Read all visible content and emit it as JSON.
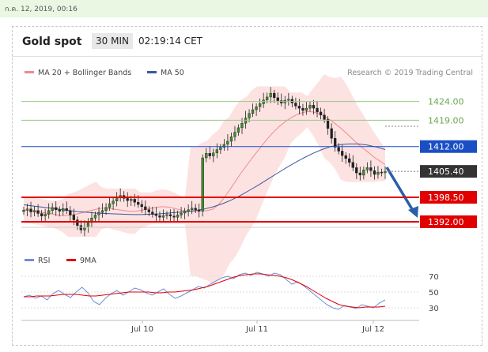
{
  "topbar": {
    "date_text": "ก.ค. 12, 2019, 00:16"
  },
  "header": {
    "title": "Gold spot",
    "timeframe": "30 MIN",
    "clock": "02:19:14 CET"
  },
  "legend": {
    "ma20_label": "MA 20 + Bollinger Bands",
    "ma50_label": "MA 50",
    "credit": "Research © 2019 Trading Central",
    "rsi_label": "RSI",
    "ma9_label": "9MA"
  },
  "colors": {
    "ma20": "#f08a8a",
    "ma50": "#3a5a9c",
    "bands": "#fde2e2",
    "resistance_green": "#9bc98a",
    "support_red": "#e00000",
    "blue_level": "#1a4fc4",
    "price_tag": "#333333",
    "arrow": "#2a5fa8",
    "rsi": "#6f8fd6",
    "rsi_ma": "#e00000"
  },
  "chart_data": [
    {
      "type": "line",
      "title": "Gold spot",
      "subtitle": "30 MIN",
      "ylim": [
        1388,
        1430
      ],
      "x_ticks": [
        "Jul 10",
        "Jul 11",
        "Jul 12"
      ],
      "current_price": 1405.4,
      "levels": [
        {
          "value": 1424.0,
          "label": "1424.00",
          "style": "resistance"
        },
        {
          "value": 1419.0,
          "label": "1419.00",
          "style": "resistance"
        },
        {
          "value": 1412.0,
          "label": "1412.00",
          "style": "pivot"
        },
        {
          "value": 1405.4,
          "label": "1405.40",
          "style": "last"
        },
        {
          "value": 1398.5,
          "label": "1398.50",
          "style": "support"
        },
        {
          "value": 1392.0,
          "label": "1392.00",
          "style": "support"
        }
      ],
      "price_series": [
        1395.1,
        1395.4,
        1394.6,
        1395.0,
        1394.2,
        1393.5,
        1394.0,
        1395.0,
        1395.8,
        1395.2,
        1394.8,
        1395.5,
        1395.0,
        1393.8,
        1392.5,
        1391.0,
        1389.8,
        1390.5,
        1391.8,
        1393.0,
        1393.8,
        1394.5,
        1395.0,
        1395.8,
        1396.8,
        1397.5,
        1398.5,
        1399.0,
        1398.2,
        1397.6,
        1398.0,
        1397.2,
        1396.6,
        1396.0,
        1395.2,
        1394.6,
        1394.0,
        1393.6,
        1393.2,
        1393.6,
        1393.9,
        1393.5,
        1393.2,
        1393.8,
        1394.3,
        1394.8,
        1395.2,
        1395.6,
        1395.2,
        1394.8,
        1409.0,
        1410.2,
        1409.5,
        1410.3,
        1411.2,
        1411.8,
        1412.6,
        1413.4,
        1414.6,
        1415.8,
        1417.0,
        1418.2,
        1419.6,
        1420.8,
        1421.8,
        1422.6,
        1423.4,
        1424.4,
        1425.2,
        1426.2,
        1425.0,
        1424.2,
        1423.6,
        1424.3,
        1424.6,
        1423.6,
        1422.8,
        1422.2,
        1421.6,
        1422.2,
        1423.0,
        1422.2,
        1421.2,
        1420.4,
        1419.2,
        1416.8,
        1414.2,
        1411.8,
        1410.8,
        1409.6,
        1408.8,
        1407.8,
        1406.4,
        1405.0,
        1404.4,
        1405.8,
        1406.4,
        1405.6,
        1404.6,
        1405.2,
        1405.0,
        1405.4
      ],
      "ma20_series": [
        1395.2,
        1395.0,
        1394.8,
        1394.6,
        1394.3,
        1394.1,
        1393.8,
        1393.6,
        1393.7,
        1393.9,
        1394.2,
        1394.6,
        1395.0,
        1395.3,
        1395.6,
        1395.6,
        1395.4,
        1395.2,
        1395.0,
        1394.8,
        1394.8,
        1395.0,
        1395.3,
        1395.6,
        1395.9,
        1396.0,
        1395.9,
        1395.6,
        1395.2,
        1394.9,
        1394.8,
        1394.8,
        1394.9,
        1395.0,
        1395.3,
        1396.5,
        1398.3,
        1400.4,
        1402.6,
        1404.8,
        1406.8,
        1408.8,
        1410.7,
        1412.6,
        1414.4,
        1416.0,
        1417.4,
        1418.6,
        1419.6,
        1420.4,
        1421.0,
        1421.3,
        1421.2,
        1420.8,
        1420.1,
        1419.2,
        1418.1,
        1416.9,
        1415.6,
        1414.2,
        1412.8,
        1411.6,
        1410.4,
        1409.2,
        1408.2,
        1407.2
      ],
      "ma50_series": [
        1396.5,
        1396.2,
        1395.9,
        1395.6,
        1395.3,
        1395.0,
        1394.7,
        1394.5,
        1394.3,
        1394.2,
        1394.1,
        1394.0,
        1393.9,
        1393.9,
        1394.0,
        1394.1,
        1394.3,
        1394.5,
        1394.7,
        1395.0,
        1395.4,
        1396.0,
        1396.8,
        1397.8,
        1399.0,
        1400.4,
        1401.8,
        1403.3,
        1404.8,
        1406.3,
        1407.7,
        1409.0,
        1410.2,
        1411.2,
        1412.0,
        1412.5,
        1412.7,
        1412.7,
        1412.4,
        1411.9,
        1411.2
      ]
    },
    {
      "type": "line",
      "ylim": [
        20,
        80
      ],
      "y_ticks": [
        70,
        50,
        30
      ],
      "series": [
        {
          "name": "RSI",
          "values": [
            44,
            46,
            42,
            45,
            40,
            48,
            52,
            47,
            43,
            50,
            56,
            49,
            38,
            34,
            42,
            48,
            52,
            46,
            50,
            55,
            53,
            49,
            46,
            50,
            54,
            47,
            42,
            45,
            49,
            53,
            57,
            55,
            60,
            64,
            68,
            70,
            67,
            72,
            74,
            71,
            75,
            73,
            70,
            74,
            72,
            66,
            60,
            63,
            58,
            52,
            46,
            40,
            34,
            30,
            28,
            33,
            31,
            29,
            34,
            32,
            30,
            36,
            40
          ]
        },
        {
          "name": "9MA",
          "values": [
            44,
            44,
            45,
            45,
            45,
            46,
            47,
            47,
            47,
            46,
            45,
            45,
            46,
            47,
            48,
            49,
            50,
            50,
            50,
            50,
            49,
            49,
            50,
            50,
            51,
            52,
            53,
            55,
            57,
            60,
            63,
            66,
            69,
            71,
            72,
            73,
            73,
            72,
            71,
            70,
            68,
            65,
            61,
            57,
            52,
            47,
            42,
            38,
            34,
            32,
            31,
            30,
            31,
            31,
            31,
            32
          ]
        }
      ]
    }
  ]
}
